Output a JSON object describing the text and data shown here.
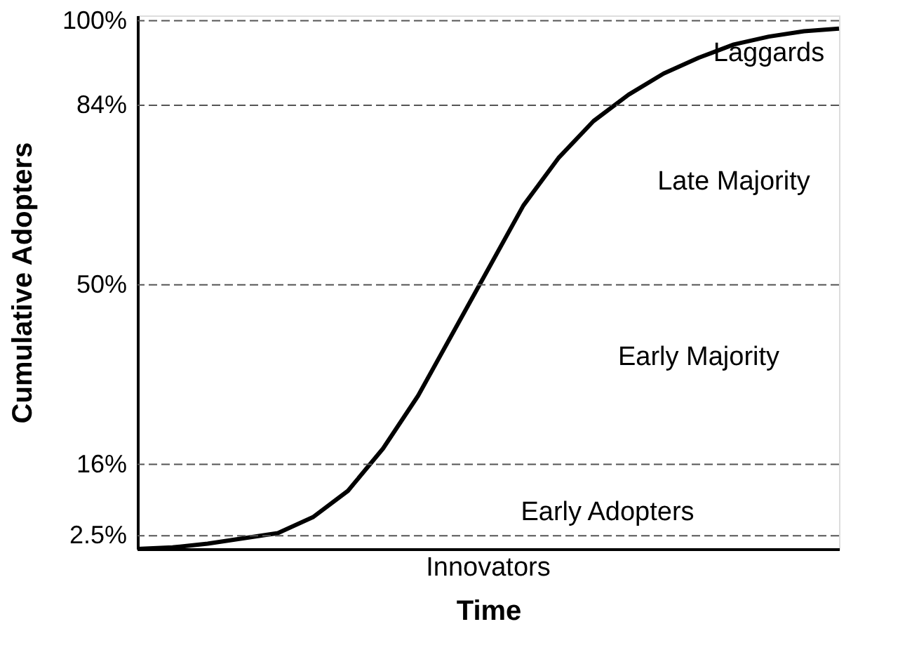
{
  "chart_data": {
    "type": "line",
    "xlabel": "Time",
    "ylabel": "Cumulative Adopters",
    "categories": [
      null,
      null,
      null,
      null,
      null,
      null,
      null,
      null,
      null,
      null,
      null,
      null,
      null,
      null,
      null,
      null,
      null,
      null,
      null,
      null,
      null
    ],
    "series": [
      {
        "color": "#000000",
        "values": [
          0,
          0.3,
          1,
          2,
          3,
          6,
          11,
          19,
          29,
          41,
          53,
          65,
          74,
          81,
          86,
          90,
          93,
          95.5,
          97,
          98,
          98.5
        ]
      }
    ],
    "ylim": [
      0,
      101
    ],
    "yticks": [
      {
        "value": 2.5,
        "label": "2.5%"
      },
      {
        "value": 16,
        "label": "16%"
      },
      {
        "value": 50,
        "label": "50%"
      },
      {
        "value": 84,
        "label": "84%"
      },
      {
        "value": 100,
        "label": "100%"
      }
    ],
    "tick_labels": "y",
    "grid": false,
    "marker": "none",
    "line_style": "solid",
    "ref_lines": [
      {
        "axis": "y",
        "value": 2.5,
        "color": "#555555",
        "line_style": "dashed"
      },
      {
        "axis": "y",
        "value": 16,
        "color": "#555555",
        "line_style": "dashed"
      },
      {
        "axis": "y",
        "value": 50,
        "color": "#555555",
        "line_style": "dashed"
      },
      {
        "axis": "y",
        "value": 84,
        "color": "#555555",
        "line_style": "dashed"
      },
      {
        "axis": "y",
        "value": 100,
        "color": "#555555",
        "line_style": "dashed"
      }
    ],
    "annotations": [
      "Laggards",
      "Late Majority",
      "Early Majority",
      "Early Adopters",
      "Innovators"
    ]
  }
}
